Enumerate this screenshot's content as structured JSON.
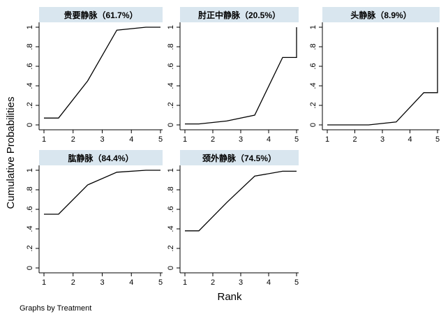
{
  "chart_data": {
    "type": "line",
    "xlabel": "Rank",
    "ylabel": "Cumulative Probabilities",
    "note": "Graphs by Treatment",
    "xlim": [
      1,
      5
    ],
    "ylim": [
      0,
      1
    ],
    "x_ticks": [
      1,
      2,
      3,
      4,
      5
    ],
    "y_ticks": [
      {
        "value": 0,
        "label": "0"
      },
      {
        "value": 0.2,
        "label": ".2"
      },
      {
        "value": 0.4,
        "label": ".4"
      },
      {
        "value": 0.6,
        "label": ".6"
      },
      {
        "value": 0.8,
        "label": ".8"
      },
      {
        "value": 1,
        "label": "1"
      }
    ],
    "panels": [
      {
        "title": "贵要静脉（61.7%）",
        "x": [
          1,
          1.5,
          2.5,
          3.5,
          4.5,
          5
        ],
        "y": [
          0.07,
          0.07,
          0.45,
          0.97,
          1.0,
          1.0
        ]
      },
      {
        "title": "肘正中静脉（20.5%）",
        "x": [
          1,
          1.5,
          2.5,
          3.5,
          4.5,
          5,
          5
        ],
        "y": [
          0.01,
          0.01,
          0.04,
          0.1,
          0.69,
          0.69,
          1.0
        ]
      },
      {
        "title": "头静脉（8.9%）",
        "x": [
          1,
          1.5,
          2.5,
          3.5,
          4.5,
          5,
          5
        ],
        "y": [
          0.0,
          0.0,
          0.0,
          0.03,
          0.33,
          0.33,
          1.0
        ]
      },
      {
        "title": "肱静脉（84.4%）",
        "x": [
          1,
          1.5,
          2.5,
          3.5,
          4.5,
          5
        ],
        "y": [
          0.55,
          0.55,
          0.85,
          0.98,
          1.0,
          1.0
        ]
      },
      {
        "title": "颈外静脉（74.5%）",
        "x": [
          1,
          1.5,
          2.5,
          3.5,
          4.5,
          5
        ],
        "y": [
          0.38,
          0.38,
          0.67,
          0.94,
          0.99,
          0.99
        ]
      }
    ]
  }
}
